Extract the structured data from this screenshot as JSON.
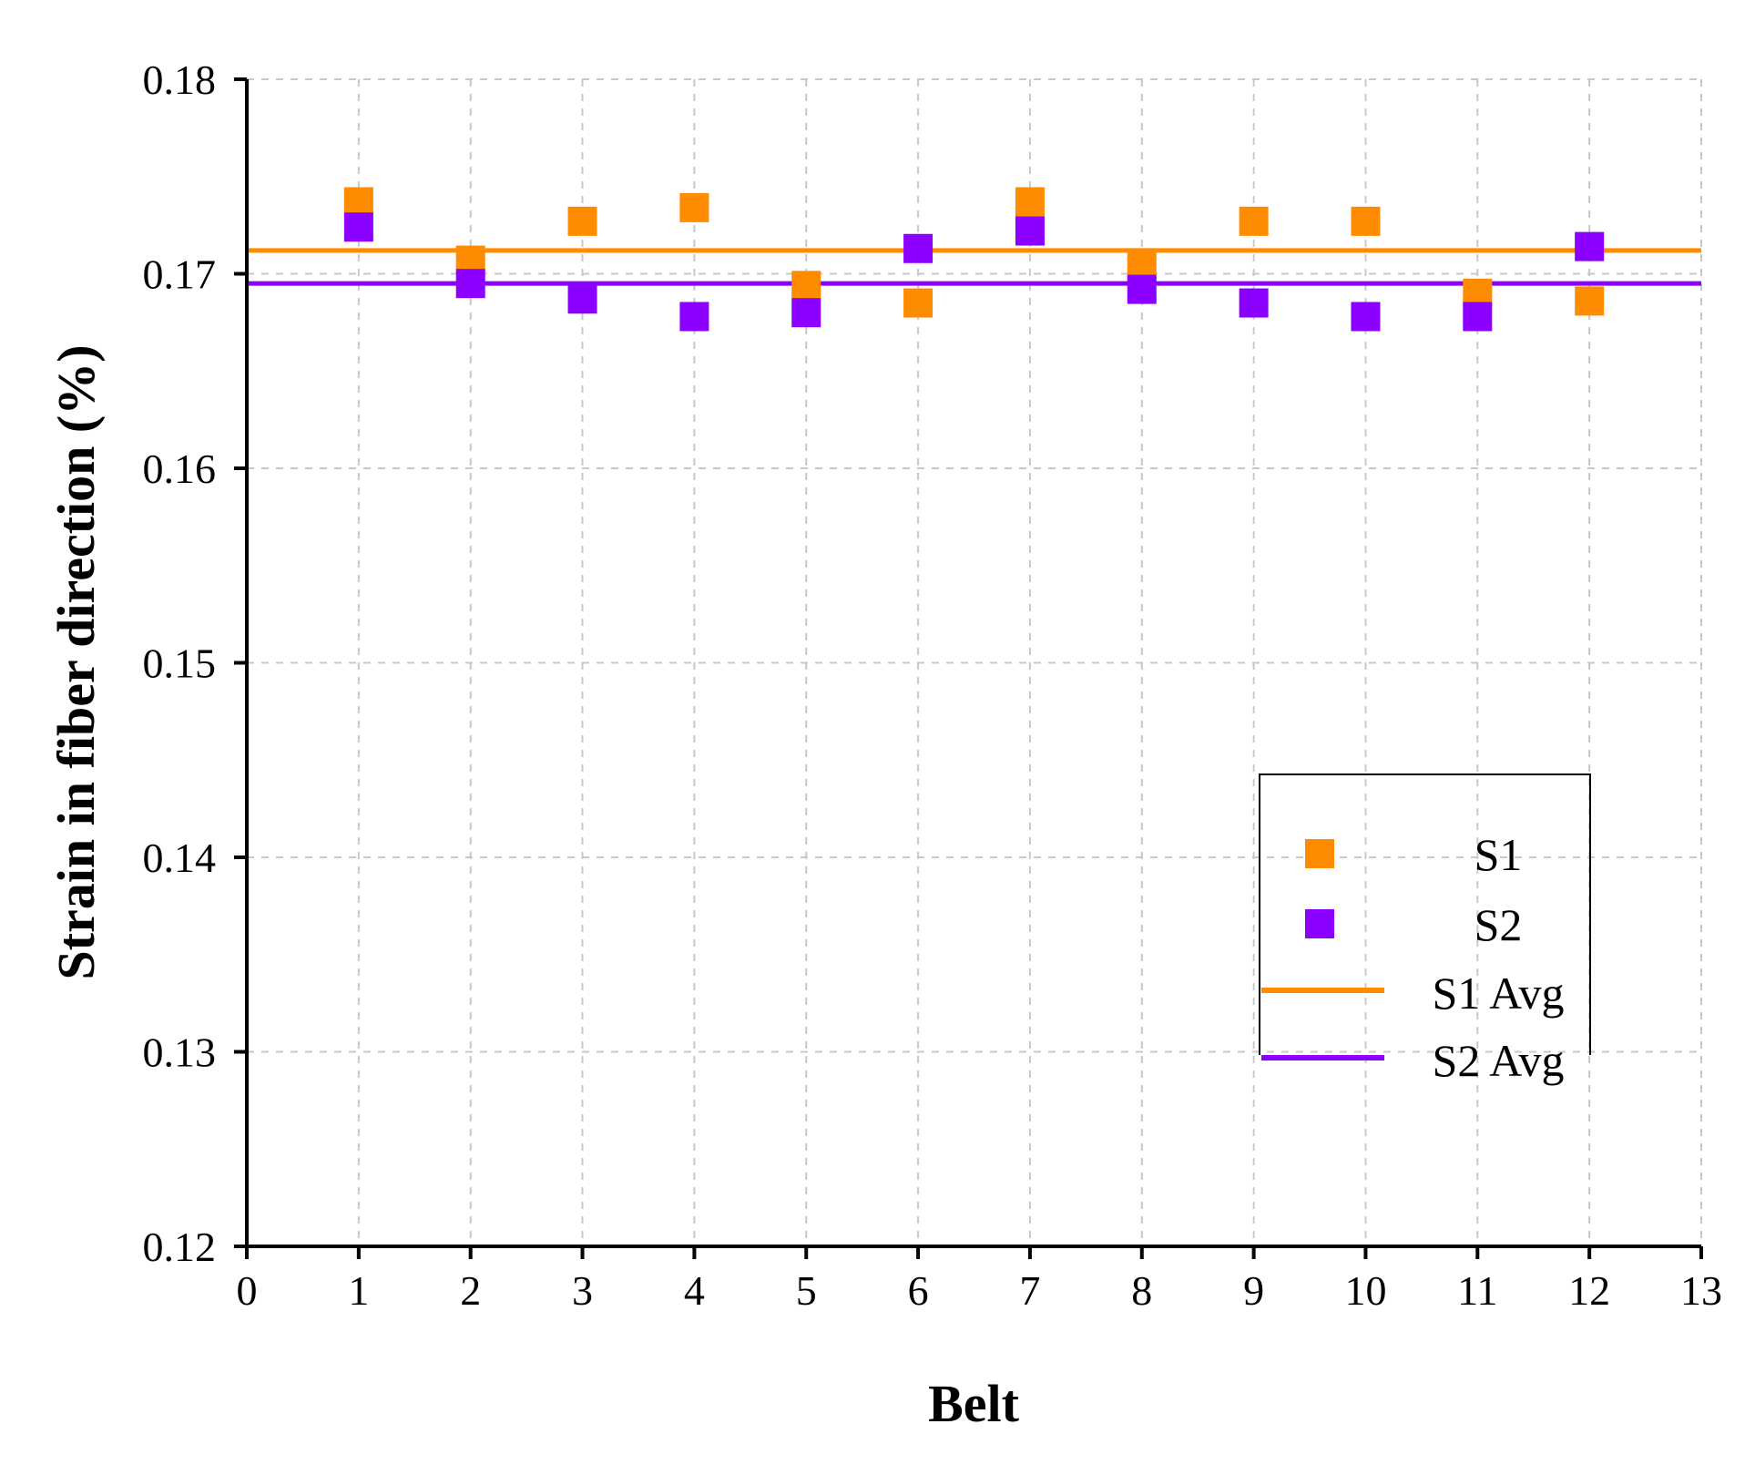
{
  "chart_data": {
    "type": "scatter",
    "title": "",
    "xlabel": "Belt",
    "ylabel": "Strain in fiber direction (%)",
    "xlim": [
      0,
      13
    ],
    "ylim": [
      0.12,
      0.18
    ],
    "xticks": [
      0,
      1,
      2,
      3,
      4,
      5,
      6,
      7,
      8,
      9,
      10,
      11,
      12,
      13
    ],
    "yticks": [
      0.12,
      0.13,
      0.14,
      0.15,
      0.16,
      0.17,
      0.18
    ],
    "ytick_labels": [
      "0.12",
      "0.13",
      "0.14",
      "0.15",
      "0.16",
      "0.17",
      "0.18"
    ],
    "grid": true,
    "legend_position": "right",
    "series": [
      {
        "name": "S1",
        "kind": "scatter",
        "color": "#FF8C00",
        "x": [
          1,
          2,
          3,
          4,
          5,
          6,
          7,
          8,
          9,
          10,
          11,
          12
        ],
        "values": [
          0.1737,
          0.1707,
          0.1727,
          0.1734,
          0.1694,
          0.1685,
          0.1737,
          0.1704,
          0.1727,
          0.1727,
          0.169,
          0.1686
        ]
      },
      {
        "name": "S2",
        "kind": "scatter",
        "color": "#8B00FF",
        "x": [
          1,
          2,
          3,
          4,
          5,
          6,
          7,
          8,
          9,
          10,
          11,
          12
        ],
        "values": [
          0.1724,
          0.1695,
          0.1687,
          0.1678,
          0.168,
          0.1713,
          0.1722,
          0.1692,
          0.1685,
          0.1678,
          0.1678,
          0.1714
        ]
      },
      {
        "name": "S1 Avg",
        "kind": "hline",
        "color": "#FF8C00",
        "value": 0.1712
      },
      {
        "name": "S2 Avg",
        "kind": "hline",
        "color": "#8B00FF",
        "value": 0.1695
      }
    ]
  }
}
